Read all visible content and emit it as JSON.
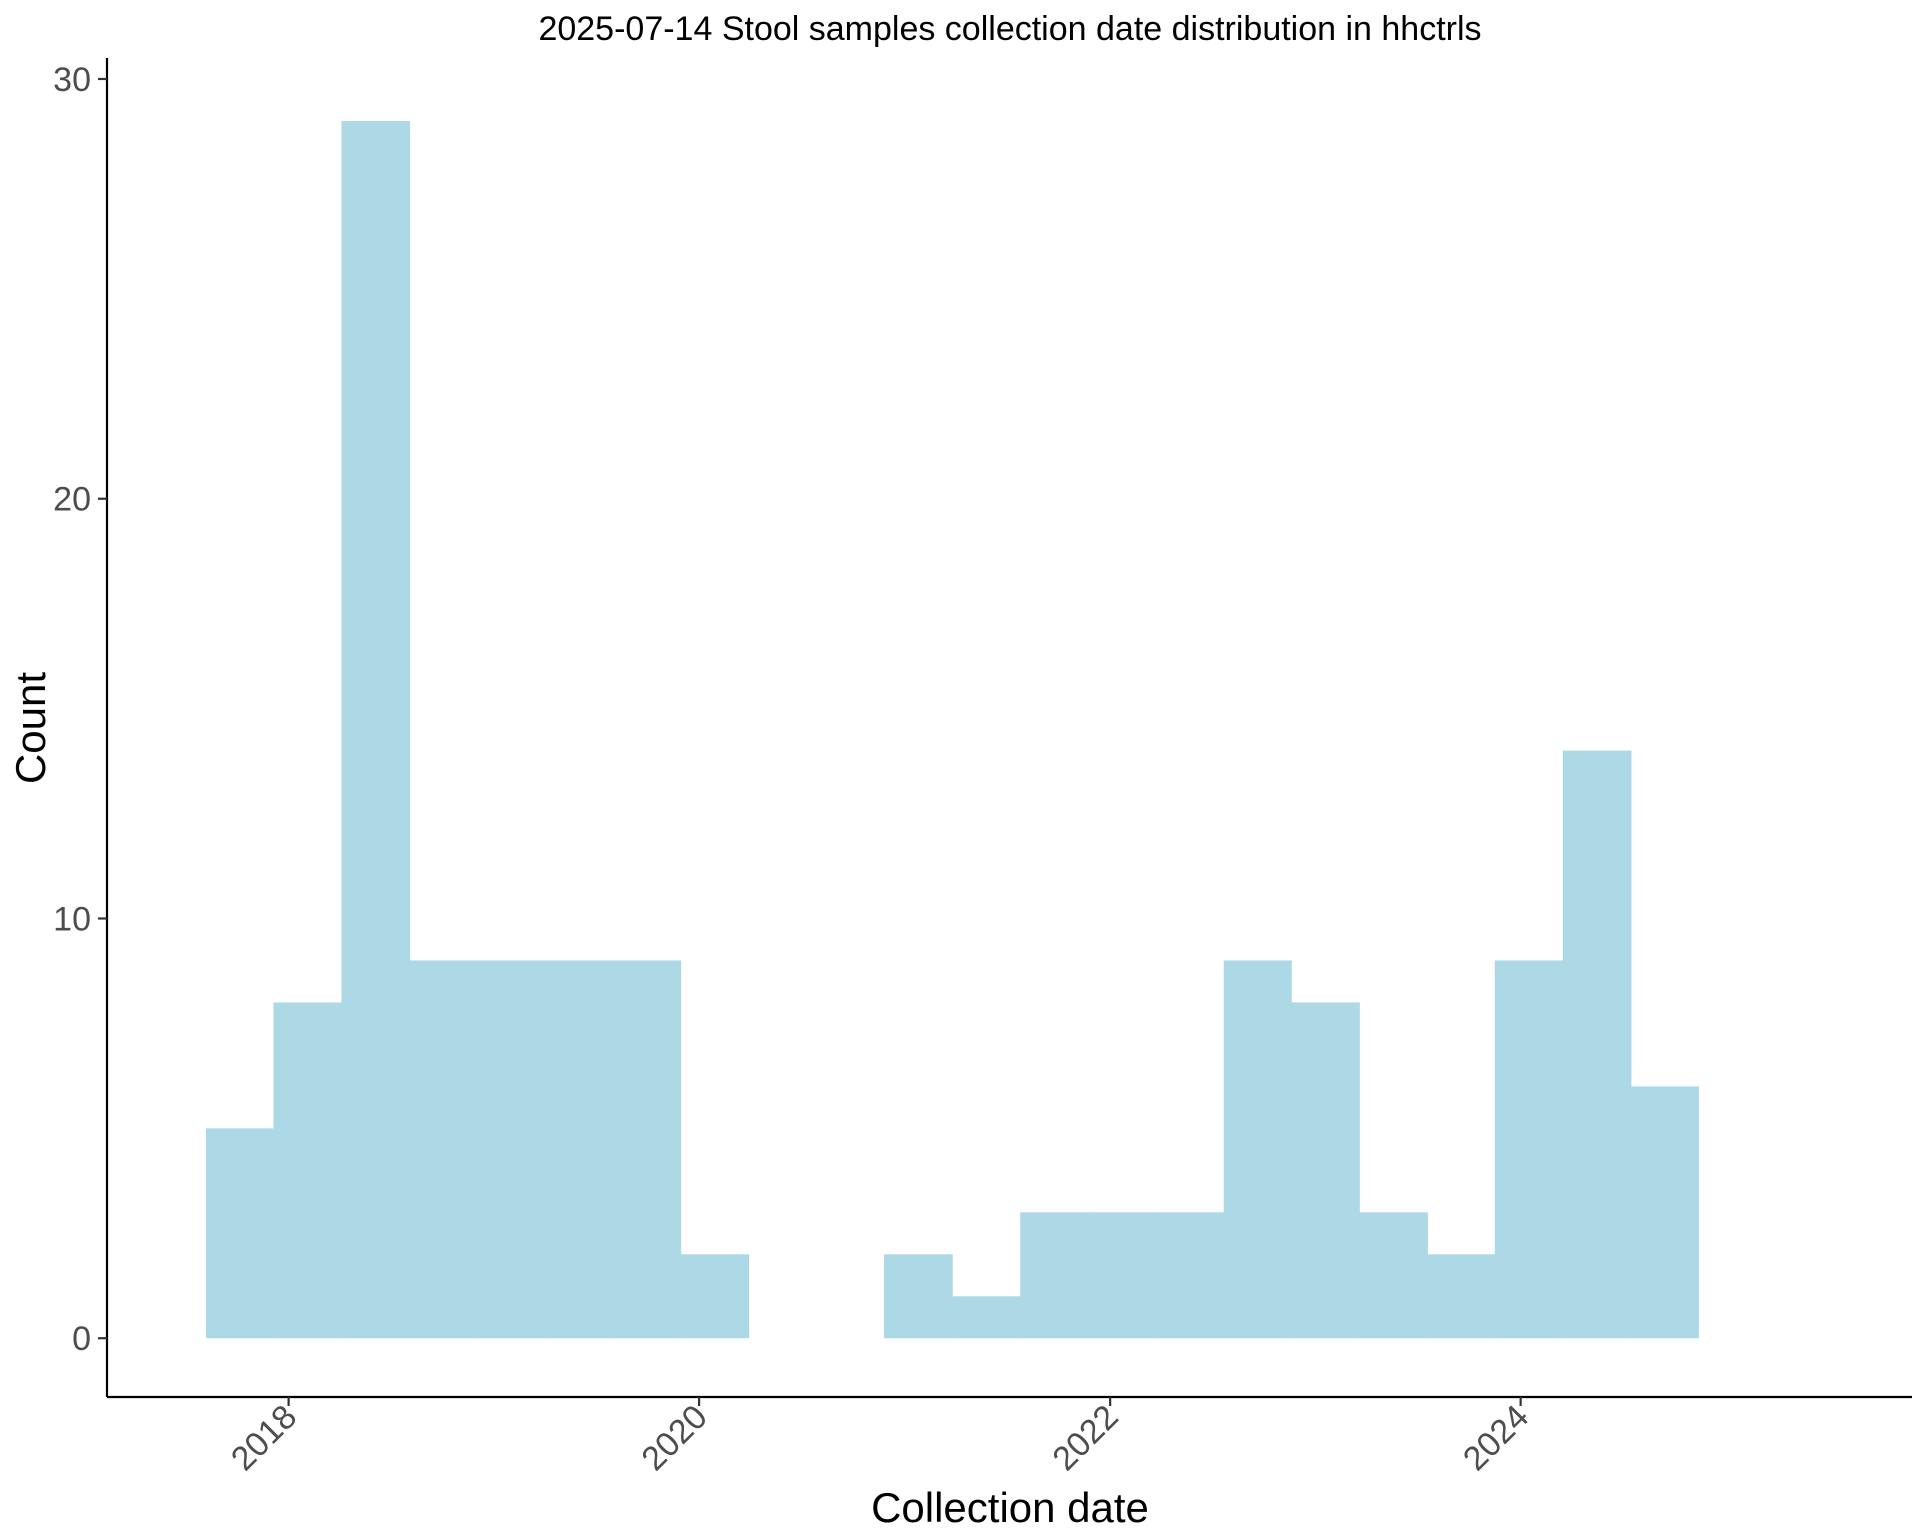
{
  "chart_data": {
    "type": "bar",
    "title": "2025-07-14 Stool samples collection date distribution in hhctrls",
    "xlabel": "Collection date",
    "ylabel": "Count",
    "bar_color": "#ADD8E6",
    "grid": false,
    "legend": "none",
    "x_tick_rotation": "45 degrees",
    "xlim": [
      "2017-02-12",
      "2025-11-27"
    ],
    "ylim": [
      -1.4,
      30.5
    ],
    "x_ticks": [
      {
        "date": "2018-01-01",
        "label": "2018"
      },
      {
        "date": "2020-01-01",
        "label": "2020"
      },
      {
        "date": "2022-01-01",
        "label": "2022"
      },
      {
        "date": "2024-01-01",
        "label": "2024"
      }
    ],
    "y_ticks": [
      {
        "value": 0,
        "label": "0"
      },
      {
        "value": 10,
        "label": "10"
      },
      {
        "value": 20,
        "label": "20"
      },
      {
        "value": 30,
        "label": "30"
      }
    ],
    "bins": [
      {
        "start": "2017-08-07",
        "end": "2017-12-05",
        "count": 5
      },
      {
        "start": "2017-12-05",
        "end": "2018-04-05",
        "count": 8
      },
      {
        "start": "2018-04-05",
        "end": "2018-08-04",
        "count": 29
      },
      {
        "start": "2018-08-04",
        "end": "2018-12-02",
        "count": 9
      },
      {
        "start": "2018-12-02",
        "end": "2019-04-02",
        "count": 9
      },
      {
        "start": "2019-04-02",
        "end": "2019-08-01",
        "count": 9
      },
      {
        "start": "2019-08-01",
        "end": "2019-11-29",
        "count": 9
      },
      {
        "start": "2019-11-29",
        "end": "2020-03-29",
        "count": 2
      },
      {
        "start": "2020-03-29",
        "end": "2020-07-28",
        "count": 0
      },
      {
        "start": "2020-07-28",
        "end": "2020-11-25",
        "count": 0
      },
      {
        "start": "2020-11-25",
        "end": "2021-03-26",
        "count": 2
      },
      {
        "start": "2021-03-26",
        "end": "2021-07-25",
        "count": 1
      },
      {
        "start": "2021-07-25",
        "end": "2021-11-22",
        "count": 3
      },
      {
        "start": "2021-11-22",
        "end": "2022-03-23",
        "count": 3
      },
      {
        "start": "2022-03-23",
        "end": "2022-07-22",
        "count": 3
      },
      {
        "start": "2022-07-22",
        "end": "2022-11-19",
        "count": 9
      },
      {
        "start": "2022-11-19",
        "end": "2023-03-20",
        "count": 8
      },
      {
        "start": "2023-03-20",
        "end": "2023-07-19",
        "count": 3
      },
      {
        "start": "2023-07-19",
        "end": "2023-11-16",
        "count": 2
      },
      {
        "start": "2023-11-16",
        "end": "2024-03-16",
        "count": 9
      },
      {
        "start": "2024-03-16",
        "end": "2024-07-15",
        "count": 14
      },
      {
        "start": "2024-07-15",
        "end": "2024-11-12",
        "count": 6
      }
    ]
  }
}
